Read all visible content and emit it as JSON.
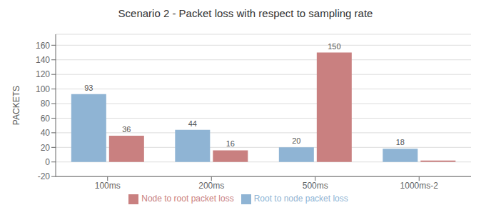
{
  "chart_data": {
    "type": "bar",
    "title": "Scenario 2 - Packet loss with respect to sampling rate",
    "categories": [
      "100ms",
      "200ms",
      "500ms",
      "1000ms-2"
    ],
    "series": [
      {
        "name": "Root to node packet loss",
        "color": "#8fb4d4",
        "values": [
          93,
          44,
          20,
          18
        ],
        "data_labels": true
      },
      {
        "name": "Node to root packet loss",
        "color": "#c98080",
        "values": [
          36,
          16,
          150,
          2
        ],
        "value_labels": [
          "36",
          "16",
          "150",
          null
        ]
      }
    ],
    "ylabel": "PACKETS",
    "ylim": [
      -20,
      175
    ],
    "yticks": [
      -20,
      0,
      20,
      40,
      60,
      80,
      100,
      120,
      140,
      160
    ],
    "grid": true,
    "legend": "bottom"
  }
}
